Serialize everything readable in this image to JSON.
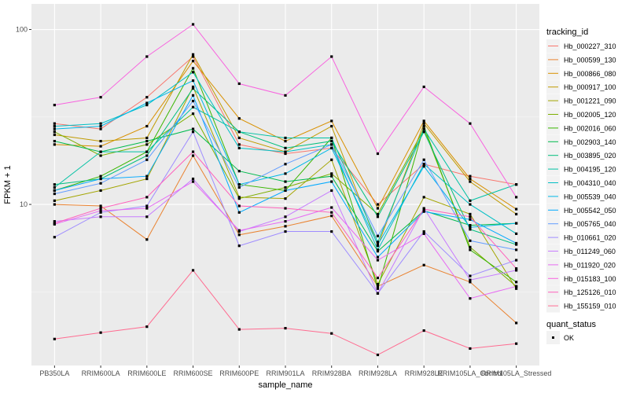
{
  "chart_data": {
    "type": "line",
    "xlabel": "sample_name",
    "ylabel": "FPKM + 1",
    "y_scale": "log10",
    "ylim": [
      1.2,
      140
    ],
    "y_ticks": [
      10,
      100
    ],
    "grid": true,
    "legend_position": "right",
    "categories": [
      "PB350LA",
      "RRIM600LA",
      "RRIM600LE",
      "RRIM600SE",
      "RRIM600PE",
      "RRIM901LA",
      "RRIM928BA",
      "RRIM928LA",
      "RRIM928LE",
      "RRIM105LA_Control",
      "RRIM105LA_Stressed"
    ],
    "legend_title": "tracking_id",
    "series": [
      {
        "name": "Hb_000227_310",
        "color": "#F8766D",
        "values": [
          29.0,
          27.0,
          41.0,
          70.0,
          22.0,
          19.5,
          21.0,
          10.0,
          17.0,
          14.5,
          13.0
        ]
      },
      {
        "name": "Hb_000599_130",
        "color": "#EA8331",
        "values": [
          10.0,
          9.8,
          6.3,
          19.0,
          6.7,
          7.5,
          8.6,
          3.4,
          4.5,
          3.6,
          2.1
        ]
      },
      {
        "name": "Hb_000866_080",
        "color": "#D89000",
        "values": [
          22.0,
          21.5,
          28.0,
          66.0,
          31.0,
          23.0,
          30.0,
          9.5,
          30.0,
          14.0,
          9.4
        ]
      },
      {
        "name": "Hb_000917_100",
        "color": "#C09B00",
        "values": [
          25.0,
          23.0,
          24.0,
          72.0,
          24.0,
          20.0,
          28.0,
          5.8,
          29.0,
          13.5,
          8.8
        ]
      },
      {
        "name": "Hb_001221_090",
        "color": "#A3A500",
        "values": [
          10.5,
          12.0,
          14.0,
          47.0,
          11.0,
          10.8,
          18.0,
          3.5,
          11.0,
          8.8,
          3.3
        ]
      },
      {
        "name": "Hb_002005_120",
        "color": "#7CAE00",
        "values": [
          26.0,
          19.0,
          22.0,
          33.0,
          10.8,
          12.5,
          15.0,
          8.8,
          27.0,
          5.7,
          3.4
        ]
      },
      {
        "name": "Hb_002016_060",
        "color": "#39B600",
        "values": [
          12.0,
          14.5,
          20.0,
          60.0,
          13.0,
          12.0,
          24.0,
          3.3,
          28.0,
          5.5,
          3.6
        ]
      },
      {
        "name": "Hb_002903_140",
        "color": "#00BB4E",
        "values": [
          23.0,
          20.0,
          23.0,
          27.0,
          15.5,
          13.5,
          14.5,
          5.4,
          9.2,
          7.6,
          7.8
        ]
      },
      {
        "name": "Hb_003895_020",
        "color": "#00BF7D",
        "values": [
          13.0,
          14.0,
          19.0,
          46.0,
          26.0,
          21.0,
          23.0,
          8.5,
          26.0,
          7.2,
          5.9
        ]
      },
      {
        "name": "Hb_004195_120",
        "color": "#00C1A3",
        "values": [
          12.5,
          20.0,
          20.0,
          36.0,
          26.0,
          24.0,
          24.0,
          6.1,
          27.0,
          10.5,
          13.0
        ]
      },
      {
        "name": "Hb_004310_040",
        "color": "#00BFC4",
        "values": [
          28.0,
          29.0,
          37.0,
          57.0,
          21.0,
          20.0,
          22.0,
          5.5,
          17.0,
          10.0,
          6.8
        ]
      },
      {
        "name": "Hb_005539_040",
        "color": "#00B8E7",
        "values": [
          27.0,
          28.0,
          38.0,
          51.0,
          13.0,
          15.0,
          21.0,
          5.9,
          16.5,
          7.4,
          7.8
        ]
      },
      {
        "name": "Hb_005542_050",
        "color": "#00A9FF",
        "values": [
          12.0,
          14.0,
          14.5,
          42.0,
          9.0,
          12.0,
          13.5,
          5.0,
          9.1,
          8.2,
          6.0
        ]
      },
      {
        "name": "Hb_005765_040",
        "color": "#619CFF",
        "values": [
          11.5,
          13.2,
          18.0,
          39.0,
          12.5,
          17.0,
          22.0,
          6.6,
          18.0,
          6.2,
          5.5
        ]
      },
      {
        "name": "Hb_010661_020",
        "color": "#9F8CFF",
        "values": [
          6.5,
          9.0,
          9.8,
          26.0,
          5.8,
          7.0,
          7.0,
          3.1,
          7.0,
          3.9,
          4.8
        ]
      },
      {
        "name": "Hb_011249_060",
        "color": "#C77CFF",
        "values": [
          8.0,
          8.5,
          8.5,
          14.0,
          7.0,
          8.5,
          12.0,
          3.1,
          9.5,
          3.7,
          4.2
        ]
      },
      {
        "name": "Hb_011920_020",
        "color": "#E76BF3",
        "values": [
          7.7,
          9.2,
          9.5,
          13.5,
          7.1,
          8.0,
          9.6,
          4.8,
          6.8,
          2.9,
          3.4
        ]
      },
      {
        "name": "Hb_015183_100",
        "color": "#F863DF",
        "values": [
          37.0,
          41.0,
          70.0,
          107.0,
          49.0,
          42.0,
          70.0,
          19.5,
          47.0,
          29.0,
          11.0
        ]
      },
      {
        "name": "Hb_125126_010",
        "color": "#FF62BC",
        "values": [
          7.8,
          9.5,
          11.0,
          20.0,
          9.8,
          9.5,
          9.0,
          3.8,
          9.4,
          8.5,
          4.3
        ]
      },
      {
        "name": "Hb_155159_010",
        "color": "#FF6C91",
        "values": [
          1.7,
          1.85,
          2.0,
          4.2,
          1.93,
          1.96,
          1.83,
          1.38,
          1.9,
          1.5,
          1.6
        ]
      }
    ],
    "shape_legend": {
      "title": "quant_status",
      "entries": [
        "OK"
      ]
    }
  }
}
